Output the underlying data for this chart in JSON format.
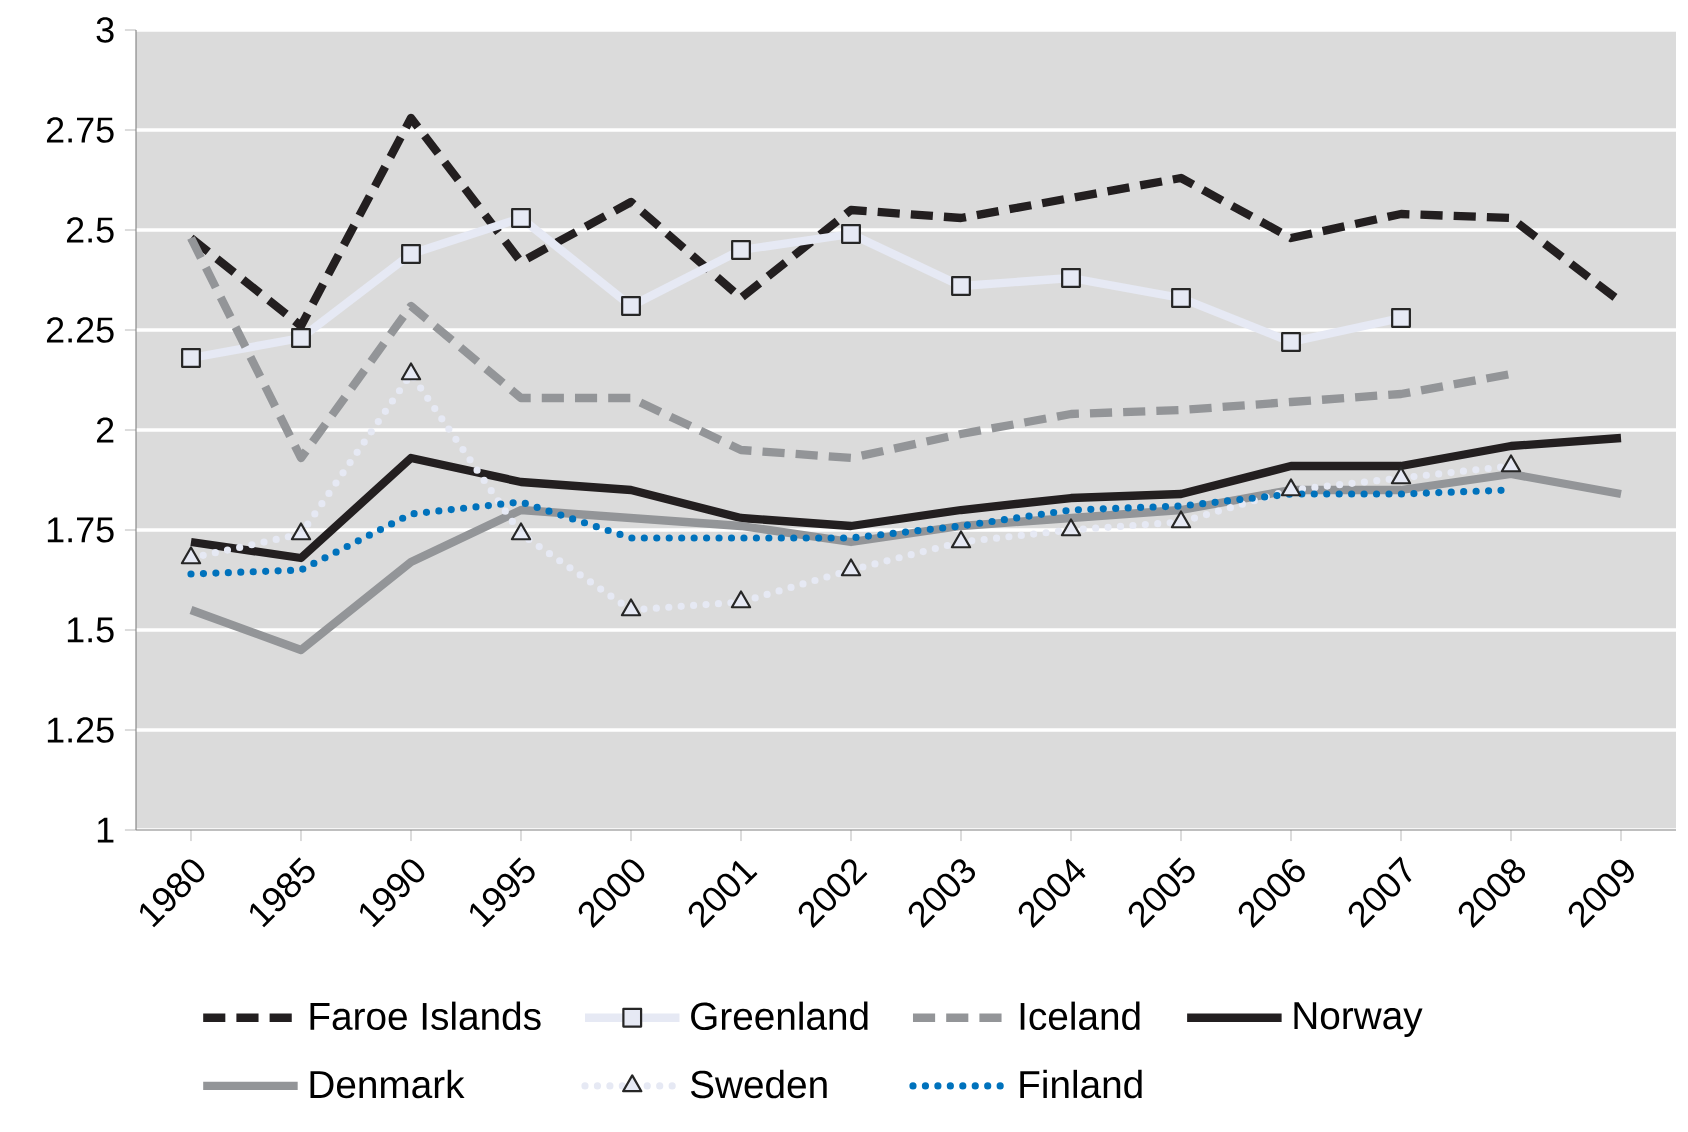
{
  "chart_data": {
    "type": "line",
    "categories": [
      "1980",
      "1985",
      "1990",
      "1995",
      "2000",
      "2001",
      "2002",
      "2003",
      "2004",
      "2005",
      "2006",
      "2007",
      "2008",
      "2009"
    ],
    "series": [
      {
        "name": "Faroe Islands",
        "color": "#231f20",
        "line_style": "dashed",
        "marker": "none",
        "values": [
          2.48,
          2.26,
          2.78,
          2.42,
          2.57,
          2.33,
          2.55,
          2.53,
          2.58,
          2.63,
          2.48,
          2.54,
          2.53,
          2.32
        ]
      },
      {
        "name": "Greenland",
        "color": "#e6e9f4",
        "line_style": "solid",
        "marker": "square",
        "values": [
          2.18,
          2.23,
          2.44,
          2.53,
          2.31,
          2.45,
          2.49,
          2.36,
          2.38,
          2.33,
          2.22,
          2.28,
          null,
          null
        ]
      },
      {
        "name": "Iceland",
        "color": "#939598",
        "line_style": "dashed",
        "marker": "none",
        "values": [
          2.48,
          1.93,
          2.31,
          2.08,
          2.08,
          1.95,
          1.93,
          1.99,
          2.04,
          2.05,
          2.07,
          2.09,
          2.14,
          null
        ]
      },
      {
        "name": "Norway",
        "color": "#231f20",
        "line_style": "solid",
        "marker": "none",
        "values": [
          1.72,
          1.68,
          1.93,
          1.87,
          1.85,
          1.78,
          1.76,
          1.8,
          1.83,
          1.84,
          1.91,
          1.91,
          1.96,
          1.98
        ]
      },
      {
        "name": "Denmark",
        "color": "#939598",
        "line_style": "solid",
        "marker": "none",
        "values": [
          1.55,
          1.45,
          1.67,
          1.8,
          1.78,
          1.76,
          1.72,
          1.76,
          1.78,
          1.8,
          1.85,
          1.85,
          1.89,
          1.84
        ]
      },
      {
        "name": "Sweden",
        "color": "#e6e9f4",
        "line_style": "dotted",
        "marker": "triangle",
        "values": [
          1.68,
          1.74,
          2.14,
          1.74,
          1.55,
          1.57,
          1.65,
          1.72,
          1.75,
          1.77,
          1.85,
          1.88,
          1.91,
          null
        ]
      },
      {
        "name": "Finland",
        "color": "#0072bc",
        "line_style": "dotted",
        "marker": "none",
        "values": [
          1.64,
          1.65,
          1.79,
          1.82,
          1.73,
          1.73,
          1.73,
          1.76,
          1.8,
          1.81,
          1.84,
          1.84,
          1.85,
          null
        ]
      }
    ],
    "ylim": [
      1,
      3
    ],
    "yticks": [
      1,
      1.25,
      1.5,
      1.75,
      2,
      2.25,
      2.5,
      2.75,
      3
    ],
    "grid": "y",
    "legend": "bottom"
  }
}
